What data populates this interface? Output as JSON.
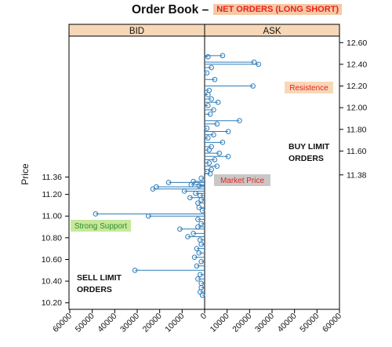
{
  "title": "Order Book –",
  "subtitle_badge": "NET ORDERS (LONG SHORT)",
  "chart_data": {
    "type": "lollipop",
    "ylabel": "Price",
    "panels": [
      "BID",
      "ASK"
    ],
    "bid_ticks_left": [
      "10.20",
      "10.40",
      "10.60",
      "10.80",
      "11.00",
      "11.20",
      "11.36"
    ],
    "ask_ticks_right": [
      "11.38",
      "11.60",
      "11.80",
      "12.00",
      "12.20",
      "12.40",
      "12.60"
    ],
    "x_ticks_bid": [
      "60000",
      "50000",
      "40000",
      "30000",
      "20000",
      "10000",
      "0"
    ],
    "x_ticks_ask": [
      "10000",
      "20000",
      "30000",
      "40000",
      "50000",
      "60000"
    ],
    "ylim": [
      10.14,
      12.66
    ],
    "xlim": [
      0,
      60000
    ],
    "annotations": {
      "resistance": "Resistence",
      "market_price": "Market Price",
      "strong_support": "Strong Support",
      "buy_limit": [
        "BUY LIMIT",
        "ORDERS"
      ],
      "sell_limit": [
        "SELL LIMIT",
        "ORDERS"
      ]
    },
    "colors": {
      "line": "#2b7bba",
      "strip": "#f6d8b8",
      "resistance_bg": "#f6d8b8",
      "resistance_fg": "#e8231a",
      "market_bg": "#c8c8c8",
      "market_fg": "#e8231a",
      "support_bg": "#c6e89a",
      "support_fg": "#2e8b2e"
    },
    "ask_orders": [
      [
        12.48,
        8000
      ],
      [
        12.47,
        1500
      ],
      [
        12.42,
        22000
      ],
      [
        12.4,
        24000
      ],
      [
        12.37,
        3000
      ],
      [
        12.32,
        1000
      ],
      [
        12.26,
        4500
      ],
      [
        12.2,
        21500
      ],
      [
        12.16,
        2000
      ],
      [
        12.12,
        1500
      ],
      [
        12.08,
        3000
      ],
      [
        12.05,
        6000
      ],
      [
        12.02,
        1500
      ],
      [
        11.98,
        4000
      ],
      [
        11.94,
        2500
      ],
      [
        11.88,
        15500
      ],
      [
        11.85,
        5500
      ],
      [
        11.81,
        1000
      ],
      [
        11.78,
        10500
      ],
      [
        11.75,
        4000
      ],
      [
        11.72,
        1500
      ],
      [
        11.68,
        8000
      ],
      [
        11.64,
        3000
      ],
      [
        11.61,
        2000
      ],
      [
        11.58,
        6500
      ],
      [
        11.55,
        10500
      ],
      [
        11.52,
        4500
      ],
      [
        11.49,
        2000
      ],
      [
        11.46,
        5500
      ],
      [
        11.43,
        3000
      ],
      [
        11.41,
        1000
      ],
      [
        11.39,
        2500
      ]
    ],
    "bid_orders": [
      [
        11.35,
        1500
      ],
      [
        11.32,
        5000
      ],
      [
        11.31,
        16000
      ],
      [
        11.29,
        6000
      ],
      [
        11.28,
        2500
      ],
      [
        11.27,
        21500
      ],
      [
        11.25,
        23000
      ],
      [
        11.23,
        9000
      ],
      [
        11.21,
        4000
      ],
      [
        11.19,
        2000
      ],
      [
        11.17,
        6500
      ],
      [
        11.15,
        1500
      ],
      [
        11.12,
        3000
      ],
      [
        11.08,
        2500
      ],
      [
        11.05,
        1000
      ],
      [
        11.02,
        48500
      ],
      [
        11.0,
        25000
      ],
      [
        10.97,
        3000
      ],
      [
        10.93,
        1500
      ],
      [
        10.9,
        3000
      ],
      [
        10.88,
        11000
      ],
      [
        10.84,
        5000
      ],
      [
        10.81,
        7500
      ],
      [
        10.78,
        2000
      ],
      [
        10.74,
        1500
      ],
      [
        10.7,
        3500
      ],
      [
        10.66,
        2500
      ],
      [
        10.62,
        4500
      ],
      [
        10.58,
        1500
      ],
      [
        10.54,
        3500
      ],
      [
        10.5,
        31000
      ],
      [
        10.46,
        2000
      ],
      [
        10.42,
        3000
      ],
      [
        10.38,
        1500
      ],
      [
        10.34,
        1500
      ],
      [
        10.3,
        2000
      ],
      [
        10.27,
        1000
      ]
    ]
  }
}
